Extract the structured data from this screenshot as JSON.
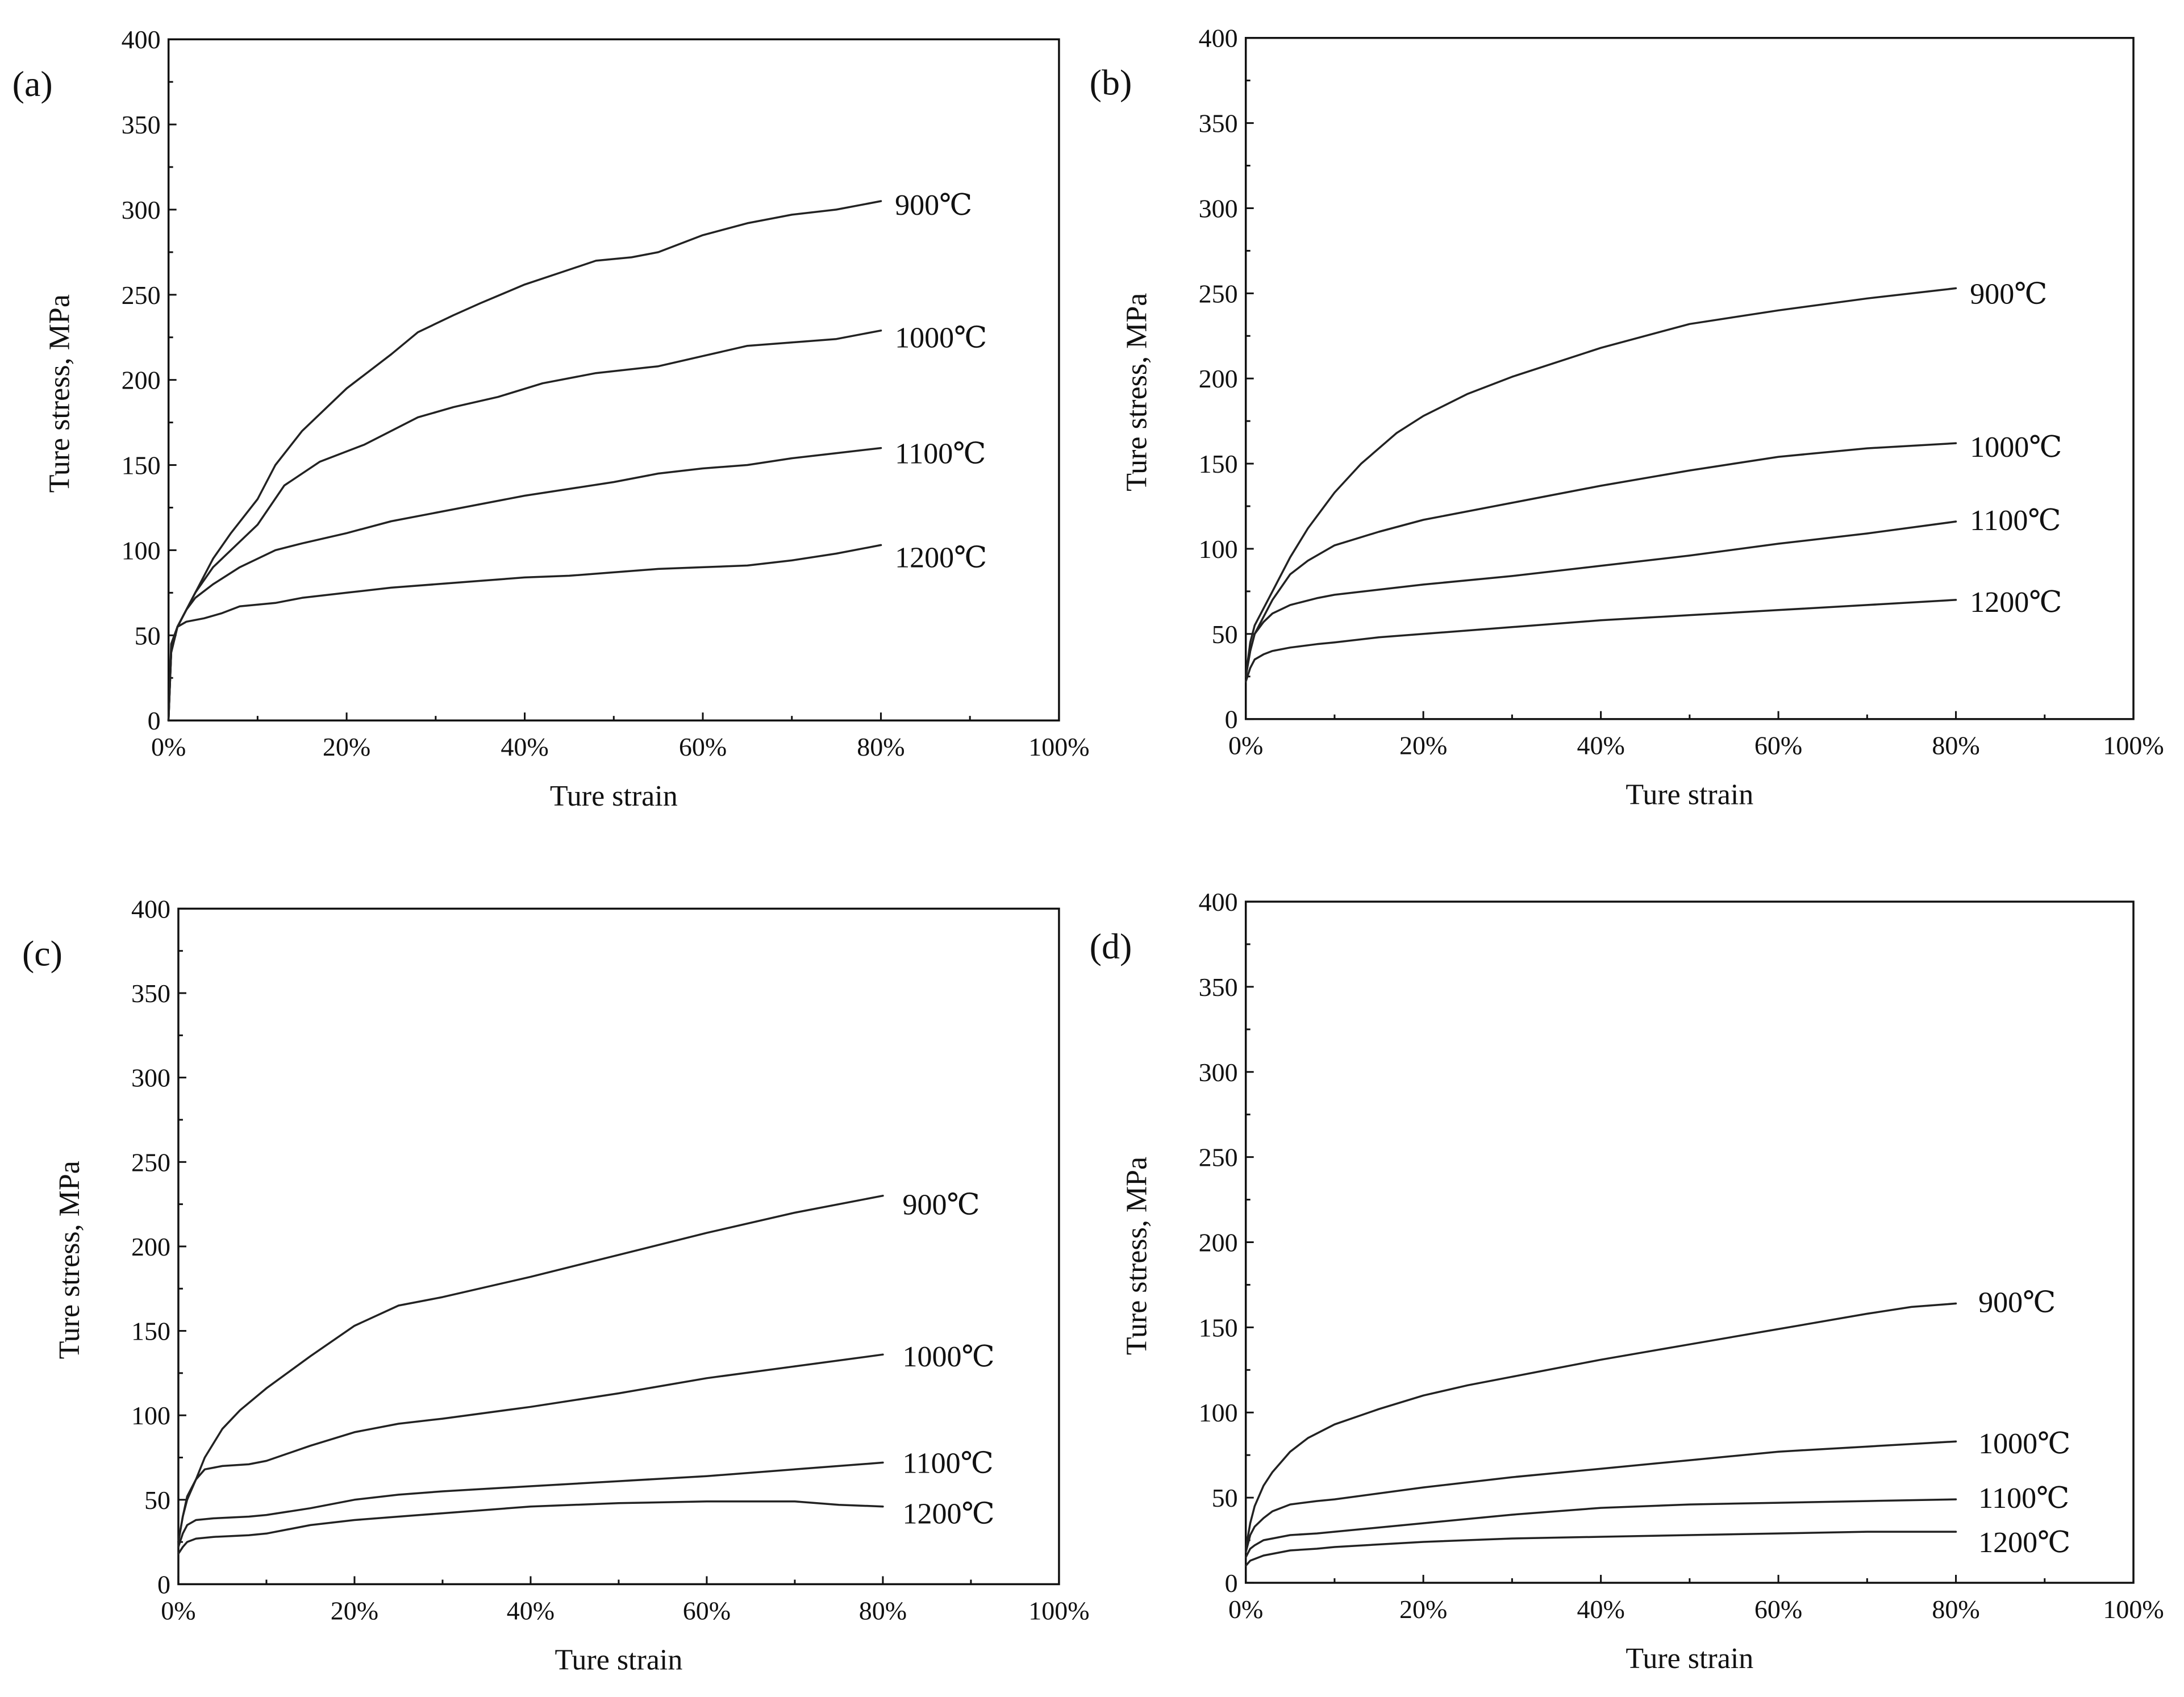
{
  "chart_data": [
    {
      "type": "line",
      "panel_label": "(a)",
      "xlabel": "Ture strain",
      "ylabel": "Ture stress, MPa",
      "xlim": [
        0,
        100
      ],
      "ylim": [
        0,
        400
      ],
      "xticks": [
        "0%",
        "20%",
        "40%",
        "60%",
        "80%",
        "100%"
      ],
      "yticks": [
        "0",
        "50",
        "100",
        "150",
        "200",
        "250",
        "300",
        "350",
        "400"
      ],
      "series": [
        {
          "name": "900℃",
          "x": [
            0,
            0.3,
            1,
            2,
            3,
            5,
            7,
            10,
            12,
            15,
            20,
            25,
            28,
            32,
            35,
            40,
            44,
            48,
            52,
            55,
            60,
            65,
            70,
            75,
            80
          ],
          "y": [
            0,
            40,
            55,
            65,
            75,
            95,
            110,
            130,
            150,
            170,
            195,
            215,
            228,
            238,
            245,
            256,
            263,
            270,
            272,
            275,
            285,
            292,
            297,
            300,
            305
          ]
        },
        {
          "name": "1000℃",
          "x": [
            0,
            0.3,
            1,
            2,
            3,
            5,
            7,
            10,
            13,
            17,
            22,
            28,
            32,
            37,
            42,
            48,
            55,
            60,
            65,
            70,
            75,
            80
          ],
          "y": [
            0,
            40,
            55,
            65,
            75,
            90,
            100,
            115,
            138,
            152,
            162,
            178,
            184,
            190,
            198,
            204,
            208,
            214,
            220,
            222,
            224,
            229
          ]
        },
        {
          "name": "1100℃",
          "x": [
            0,
            0.3,
            1,
            2,
            3,
            5,
            8,
            12,
            15,
            20,
            25,
            30,
            35,
            40,
            45,
            50,
            55,
            60,
            65,
            70,
            75,
            80
          ],
          "y": [
            0,
            40,
            55,
            65,
            72,
            80,
            90,
            100,
            104,
            110,
            117,
            122,
            127,
            132,
            136,
            140,
            145,
            148,
            150,
            154,
            157,
            160
          ]
        },
        {
          "name": "1200℃",
          "x": [
            0,
            0.3,
            1,
            2,
            4,
            6,
            8,
            12,
            15,
            20,
            25,
            30,
            35,
            40,
            45,
            50,
            55,
            60,
            65,
            70,
            75,
            80
          ],
          "y": [
            0,
            45,
            55,
            58,
            60,
            63,
            67,
            69,
            72,
            75,
            78,
            80,
            82,
            84,
            85,
            87,
            89,
            90,
            91,
            94,
            98,
            103
          ]
        }
      ]
    },
    {
      "type": "line",
      "panel_label": "(b)",
      "xlabel": "Ture strain",
      "ylabel": "Ture stress, MPa",
      "xlim": [
        0,
        100
      ],
      "ylim": [
        0,
        400
      ],
      "xticks": [
        "0%",
        "20%",
        "40%",
        "60%",
        "80%",
        "100%"
      ],
      "yticks": [
        "0",
        "50",
        "100",
        "150",
        "200",
        "250",
        "300",
        "350",
        "400"
      ],
      "series": [
        {
          "name": "900℃",
          "x": [
            0,
            0.5,
            1,
            2,
            3,
            5,
            7,
            10,
            13,
            17,
            20,
            25,
            30,
            40,
            50,
            60,
            70,
            80
          ],
          "y": [
            25,
            45,
            55,
            65,
            75,
            95,
            112,
            133,
            150,
            168,
            178,
            191,
            201,
            218,
            232,
            240,
            247,
            253
          ]
        },
        {
          "name": "1000℃",
          "x": [
            0,
            0.5,
            1,
            2,
            3,
            5,
            7,
            10,
            15,
            20,
            30,
            40,
            50,
            60,
            70,
            80
          ],
          "y": [
            25,
            40,
            50,
            60,
            70,
            85,
            93,
            102,
            110,
            117,
            127,
            137,
            146,
            154,
            159,
            162
          ]
        },
        {
          "name": "1100℃",
          "x": [
            0,
            0.5,
            1,
            2,
            3,
            5,
            8,
            10,
            15,
            20,
            30,
            40,
            50,
            60,
            70,
            80
          ],
          "y": [
            25,
            40,
            50,
            57,
            62,
            67,
            71,
            73,
            76,
            79,
            84,
            90,
            96,
            103,
            109,
            116
          ]
        },
        {
          "name": "1200℃",
          "x": [
            0,
            0.5,
            1,
            2,
            3,
            5,
            8,
            10,
            15,
            20,
            30,
            40,
            50,
            60,
            70,
            80
          ],
          "y": [
            22,
            30,
            35,
            38,
            40,
            42,
            44,
            45,
            48,
            50,
            54,
            58,
            61,
            64,
            67,
            70
          ]
        }
      ]
    },
    {
      "type": "line",
      "panel_label": "(c)",
      "xlabel": "Ture strain",
      "ylabel": "Ture stress, MPa",
      "xlim": [
        0,
        100
      ],
      "ylim": [
        0,
        400
      ],
      "xticks": [
        "0%",
        "20%",
        "40%",
        "60%",
        "80%",
        "100%"
      ],
      "yticks": [
        "0",
        "50",
        "100",
        "150",
        "200",
        "250",
        "300",
        "350",
        "400"
      ],
      "series": [
        {
          "name": "900℃",
          "x": [
            0,
            0.5,
            1,
            2,
            3,
            5,
            7,
            10,
            15,
            20,
            25,
            30,
            40,
            50,
            60,
            70,
            80
          ],
          "y": [
            25,
            40,
            50,
            62,
            75,
            92,
            103,
            116,
            135,
            153,
            165,
            170,
            182,
            195,
            208,
            220,
            230
          ]
        },
        {
          "name": "1000℃",
          "x": [
            0,
            0.5,
            1,
            2,
            3,
            5,
            8,
            10,
            15,
            20,
            25,
            30,
            40,
            50,
            60,
            70,
            80
          ],
          "y": [
            25,
            40,
            52,
            62,
            68,
            70,
            71,
            73,
            82,
            90,
            95,
            98,
            105,
            113,
            122,
            129,
            136
          ]
        },
        {
          "name": "1100℃",
          "x": [
            0,
            0.5,
            1,
            2,
            4,
            8,
            10,
            15,
            20,
            25,
            30,
            40,
            50,
            60,
            70,
            80
          ],
          "y": [
            22,
            30,
            35,
            38,
            39,
            40,
            41,
            45,
            50,
            53,
            55,
            58,
            61,
            64,
            68,
            72
          ]
        },
        {
          "name": "1200℃",
          "x": [
            0,
            0.5,
            1,
            2,
            4,
            8,
            10,
            15,
            20,
            25,
            30,
            40,
            50,
            60,
            70,
            75,
            80
          ],
          "y": [
            18,
            22,
            25,
            27,
            28,
            29,
            30,
            35,
            38,
            40,
            42,
            46,
            48,
            49,
            49,
            47,
            46
          ]
        }
      ]
    },
    {
      "type": "line",
      "panel_label": "(d)",
      "xlabel": "Ture strain",
      "ylabel": "Ture stress, MPa",
      "xlim": [
        0,
        100
      ],
      "ylim": [
        0,
        400
      ],
      "xticks": [
        "0%",
        "20%",
        "40%",
        "60%",
        "80%",
        "100%"
      ],
      "yticks": [
        "0",
        "50",
        "100",
        "150",
        "200",
        "250",
        "300",
        "350",
        "400"
      ],
      "series": [
        {
          "name": "900℃",
          "x": [
            0,
            0.5,
            1,
            2,
            3,
            5,
            7,
            10,
            15,
            20,
            25,
            30,
            40,
            50,
            60,
            70,
            75,
            80
          ],
          "y": [
            20,
            35,
            45,
            57,
            65,
            77,
            85,
            93,
            102,
            110,
            116,
            121,
            131,
            140,
            149,
            158,
            162,
            164
          ]
        },
        {
          "name": "1000℃",
          "x": [
            0,
            0.5,
            1,
            2,
            3,
            5,
            8,
            10,
            20,
            30,
            40,
            50,
            60,
            70,
            80
          ],
          "y": [
            18,
            28,
            33,
            38,
            42,
            46,
            48,
            49,
            56,
            62,
            67,
            72,
            77,
            80,
            83
          ]
        },
        {
          "name": "1100℃",
          "x": [
            0,
            0.5,
            1,
            2,
            3,
            5,
            8,
            10,
            20,
            30,
            40,
            50,
            60,
            70,
            80
          ],
          "y": [
            15,
            20,
            22,
            25,
            26,
            28,
            29,
            30,
            35,
            40,
            44,
            46,
            47,
            48,
            49
          ]
        },
        {
          "name": "1200℃",
          "x": [
            0,
            0.5,
            1,
            2,
            3,
            5,
            8,
            10,
            20,
            30,
            40,
            50,
            60,
            70,
            80
          ],
          "y": [
            10,
            13,
            14,
            16,
            17,
            19,
            20,
            21,
            24,
            26,
            27,
            28,
            29,
            30,
            30
          ]
        }
      ]
    }
  ]
}
